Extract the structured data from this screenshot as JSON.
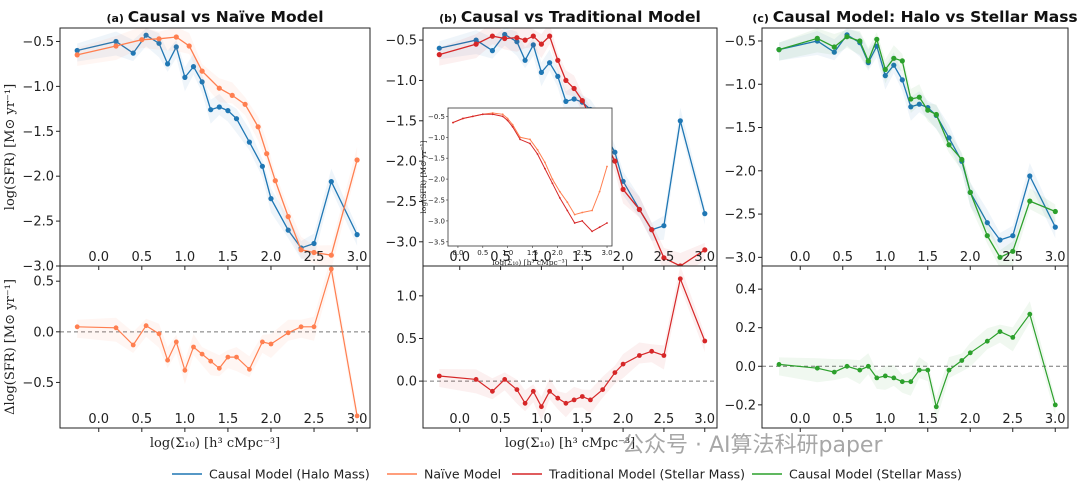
{
  "chart_data": [
    {
      "id": "a",
      "type": "line",
      "title": "Causal vs Naïve Model",
      "label": "(a)",
      "ylabel": "log(SFR) [M⊙ yr⁻¹]",
      "xlabel": "log(Σ₁₀) [h³ cMpc⁻³]",
      "xlim": [
        -0.45,
        3.15
      ],
      "top": {
        "ylim": [
          -3.0,
          -0.35
        ],
        "yticks": [
          -0.5,
          -1.0,
          -1.5,
          -2.0,
          -2.5,
          -3.0
        ],
        "series": [
          {
            "name": "Causal Model (Halo Mass)",
            "color": "#1f77b4",
            "x": [
              -0.25,
              0.2,
              0.4,
              0.55,
              0.7,
              0.8,
              0.9,
              1.0,
              1.1,
              1.2,
              1.3,
              1.4,
              1.5,
              1.6,
              1.75,
              1.9,
              2.0,
              2.2,
              2.35,
              2.5,
              2.7,
              3.0
            ],
            "y": [
              -0.6,
              -0.5,
              -0.63,
              -0.43,
              -0.52,
              -0.75,
              -0.56,
              -0.9,
              -0.78,
              -0.95,
              -1.26,
              -1.23,
              -1.27,
              -1.36,
              -1.62,
              -1.89,
              -2.25,
              -2.6,
              -2.8,
              -2.75,
              -2.06,
              -2.65
            ]
          },
          {
            "name": "Naïve Model",
            "color": "#ff7f50",
            "x": [
              -0.25,
              0.2,
              0.5,
              0.7,
              0.9,
              1.05,
              1.2,
              1.4,
              1.55,
              1.7,
              1.85,
              1.95,
              2.05,
              2.2,
              2.35,
              2.5,
              2.7,
              3.0
            ],
            "y": [
              -0.65,
              -0.55,
              -0.48,
              -0.47,
              -0.45,
              -0.55,
              -0.83,
              -1.02,
              -1.1,
              -1.2,
              -1.45,
              -1.75,
              -2.05,
              -2.45,
              -2.82,
              -2.85,
              -2.88,
              -1.82
            ]
          }
        ]
      },
      "bottom": {
        "ylabel": "Δlog(SFR) [M⊙ yr⁻¹]",
        "ylim": [
          -0.95,
          0.65
        ],
        "yticks": [
          0.5,
          0.0,
          -0.5
        ],
        "series": [
          {
            "name": "Naïve Model",
            "color": "#ff7f50",
            "x": [
              -0.25,
              0.2,
              0.4,
              0.55,
              0.7,
              0.8,
              0.9,
              1.0,
              1.1,
              1.2,
              1.3,
              1.4,
              1.5,
              1.6,
              1.75,
              1.9,
              2.0,
              2.2,
              2.35,
              2.5,
              2.7,
              3.0
            ],
            "y": [
              0.05,
              0.04,
              -0.13,
              0.06,
              -0.02,
              -0.28,
              -0.1,
              -0.38,
              -0.15,
              -0.22,
              -0.29,
              -0.36,
              -0.25,
              -0.25,
              -0.37,
              -0.1,
              -0.12,
              -0.01,
              0.05,
              0.05,
              0.62,
              -0.83
            ]
          }
        ]
      }
    },
    {
      "id": "b",
      "type": "line",
      "title": "Causal vs Traditional Model",
      "label": "(b)",
      "xlabel": "log(Σ₁₀) [h³ cMpc⁻³]",
      "xlim": [
        -0.45,
        3.15
      ],
      "top": {
        "ylim": [
          -3.3,
          -0.35
        ],
        "yticks": [
          -0.5,
          -1.0,
          -1.5,
          -2.0,
          -2.5,
          -3.0
        ],
        "series": [
          {
            "name": "Causal Model (Halo Mass)",
            "color": "#1f77b4",
            "x": [
              -0.25,
              0.2,
              0.4,
              0.55,
              0.7,
              0.8,
              0.9,
              1.0,
              1.1,
              1.2,
              1.3,
              1.4,
              1.5,
              1.6,
              1.75,
              1.9,
              2.0,
              2.2,
              2.35,
              2.5,
              2.7,
              3.0
            ],
            "y": [
              -0.6,
              -0.5,
              -0.63,
              -0.43,
              -0.52,
              -0.75,
              -0.56,
              -0.9,
              -0.78,
              -0.95,
              -1.26,
              -1.23,
              -1.27,
              -1.36,
              -1.62,
              -1.89,
              -2.25,
              -2.6,
              -2.85,
              -2.8,
              -1.5,
              -2.65
            ]
          },
          {
            "name": "Traditional Model (Stellar Mass)",
            "color": "#d62728",
            "x": [
              -0.25,
              0.2,
              0.4,
              0.55,
              0.7,
              0.8,
              0.9,
              1.0,
              1.1,
              1.2,
              1.3,
              1.4,
              1.5,
              1.6,
              1.75,
              1.9,
              2.0,
              2.2,
              2.35,
              2.5,
              2.7,
              3.0
            ],
            "y": [
              -0.68,
              -0.55,
              -0.45,
              -0.48,
              -0.47,
              -0.5,
              -0.45,
              -0.55,
              -0.45,
              -0.75,
              -1.0,
              -1.1,
              -1.25,
              -1.45,
              -1.7,
              -2.0,
              -2.35,
              -2.6,
              -2.85,
              -3.2,
              -3.3,
              -3.1
            ]
          }
        ]
      },
      "inset": {
        "ylabel": "log(SFR) [M⊙ yr⁻¹]",
        "xlabel": "log(Σ₁₀) [h³ cMpc⁻³]",
        "xlim": [
          -0.2,
          3.1
        ],
        "ylim": [
          -3.6,
          -0.3
        ],
        "xticks": [
          0.0,
          0.5,
          1.0,
          1.5,
          2.0,
          2.5,
          3.0
        ],
        "yticks": [
          -0.5,
          -1.0,
          -1.5,
          -2.0,
          -2.5,
          -3.0,
          -3.5
        ],
        "series": [
          {
            "name": "inset-orange",
            "color": "#ff7f50",
            "x": [
              -0.1,
              0.1,
              0.3,
              0.5,
              0.7,
              0.9,
              1.0,
              1.1,
              1.25,
              1.45,
              1.6,
              1.75,
              1.9,
              2.05,
              2.2,
              2.35,
              2.5,
              2.7,
              2.85,
              3.0
            ],
            "y": [
              -0.65,
              -0.55,
              -0.5,
              -0.45,
              -0.42,
              -0.45,
              -0.55,
              -0.7,
              -1.0,
              -1.05,
              -1.3,
              -1.6,
              -2.0,
              -2.3,
              -2.55,
              -2.85,
              -2.8,
              -2.75,
              -2.3,
              -1.7
            ]
          },
          {
            "name": "inset-red",
            "color": "#d62728",
            "x": [
              -0.1,
              0.1,
              0.3,
              0.5,
              0.7,
              0.9,
              1.0,
              1.1,
              1.25,
              1.45,
              1.6,
              1.75,
              1.9,
              2.05,
              2.2,
              2.35,
              2.5,
              2.7,
              2.85,
              3.0
            ],
            "y": [
              -0.65,
              -0.55,
              -0.5,
              -0.45,
              -0.45,
              -0.5,
              -0.6,
              -0.75,
              -1.05,
              -1.15,
              -1.4,
              -1.75,
              -2.1,
              -2.45,
              -2.75,
              -3.05,
              -3.0,
              -3.25,
              -3.15,
              -3.05
            ]
          }
        ]
      },
      "bottom": {
        "ylim": [
          -0.55,
          1.35
        ],
        "yticks": [
          1.0,
          0.5,
          0.0
        ],
        "series": [
          {
            "name": "Traditional Model (Stellar Mass)",
            "color": "#d62728",
            "x": [
              -0.25,
              0.2,
              0.4,
              0.55,
              0.7,
              0.8,
              0.9,
              1.0,
              1.1,
              1.2,
              1.3,
              1.4,
              1.5,
              1.6,
              1.75,
              1.9,
              2.0,
              2.2,
              2.35,
              2.5,
              2.7,
              3.0
            ],
            "y": [
              0.06,
              0.02,
              -0.12,
              0.02,
              -0.1,
              -0.26,
              -0.12,
              -0.3,
              -0.12,
              -0.2,
              -0.26,
              -0.22,
              -0.18,
              -0.22,
              -0.1,
              0.1,
              0.2,
              0.3,
              0.35,
              0.3,
              1.2,
              0.47
            ]
          }
        ]
      }
    },
    {
      "id": "c",
      "type": "line",
      "title": "Causal Model: Halo vs Stellar Mass",
      "label": "(c)",
      "xlabel": "log(Σ₁₀) [h³ cMpc⁻³]",
      "xlim": [
        -0.45,
        3.15
      ],
      "top": {
        "ylim": [
          -3.1,
          -0.35
        ],
        "yticks": [
          -0.5,
          -1.0,
          -1.5,
          -2.0,
          -2.5,
          -3.0
        ],
        "series": [
          {
            "name": "Causal Model (Halo Mass)",
            "color": "#1f77b4",
            "x": [
              -0.25,
              0.2,
              0.4,
              0.55,
              0.7,
              0.8,
              0.9,
              1.0,
              1.1,
              1.2,
              1.3,
              1.4,
              1.5,
              1.6,
              1.75,
              1.9,
              2.0,
              2.2,
              2.35,
              2.5,
              2.7,
              3.0
            ],
            "y": [
              -0.6,
              -0.5,
              -0.63,
              -0.43,
              -0.52,
              -0.75,
              -0.56,
              -0.9,
              -0.78,
              -0.95,
              -1.26,
              -1.23,
              -1.27,
              -1.36,
              -1.62,
              -1.89,
              -2.25,
              -2.6,
              -2.8,
              -2.75,
              -2.06,
              -2.65
            ]
          },
          {
            "name": "Causal Model (Stellar Mass)",
            "color": "#2ca02c",
            "x": [
              -0.25,
              0.2,
              0.4,
              0.55,
              0.7,
              0.8,
              0.9,
              1.0,
              1.1,
              1.2,
              1.3,
              1.4,
              1.5,
              1.6,
              1.75,
              1.9,
              2.0,
              2.2,
              2.35,
              2.5,
              2.7,
              3.0
            ],
            "y": [
              -0.6,
              -0.47,
              -0.57,
              -0.45,
              -0.5,
              -0.73,
              -0.48,
              -0.83,
              -0.7,
              -0.73,
              -1.17,
              -1.15,
              -1.3,
              -1.35,
              -1.7,
              -1.87,
              -2.25,
              -2.75,
              -3.0,
              -2.93,
              -2.35,
              -2.47
            ]
          }
        ]
      },
      "bottom": {
        "ylim": [
          -0.32,
          0.52
        ],
        "yticks": [
          0.4,
          0.2,
          0.0,
          -0.2
        ],
        "series": [
          {
            "name": "Causal Model (Stellar Mass)",
            "color": "#2ca02c",
            "x": [
              -0.25,
              0.2,
              0.4,
              0.55,
              0.7,
              0.8,
              0.9,
              1.0,
              1.1,
              1.2,
              1.3,
              1.4,
              1.5,
              1.6,
              1.75,
              1.9,
              2.0,
              2.2,
              2.35,
              2.5,
              2.7,
              3.0
            ],
            "y": [
              0.01,
              -0.01,
              -0.03,
              0.0,
              -0.02,
              0.0,
              -0.06,
              -0.05,
              -0.06,
              -0.08,
              -0.08,
              -0.02,
              -0.02,
              -0.21,
              -0.02,
              0.03,
              0.07,
              0.13,
              0.18,
              0.15,
              0.27,
              -0.2
            ]
          }
        ]
      }
    }
  ],
  "xticks": [
    0.0,
    0.5,
    1.0,
    1.5,
    2.0,
    2.5,
    3.0
  ],
  "legend": {
    "placement": "bottom",
    "entries": [
      {
        "label": "Causal Model (Halo Mass)",
        "color": "#1f77b4"
      },
      {
        "label": "Naïve Model",
        "color": "#ff7f50"
      },
      {
        "label": "Traditional Model (Stellar Mass)",
        "color": "#d62728"
      },
      {
        "label": "Causal Model (Stellar Mass)",
        "color": "#2ca02c"
      }
    ]
  },
  "watermark": "公众号 · AI算法科研paper"
}
